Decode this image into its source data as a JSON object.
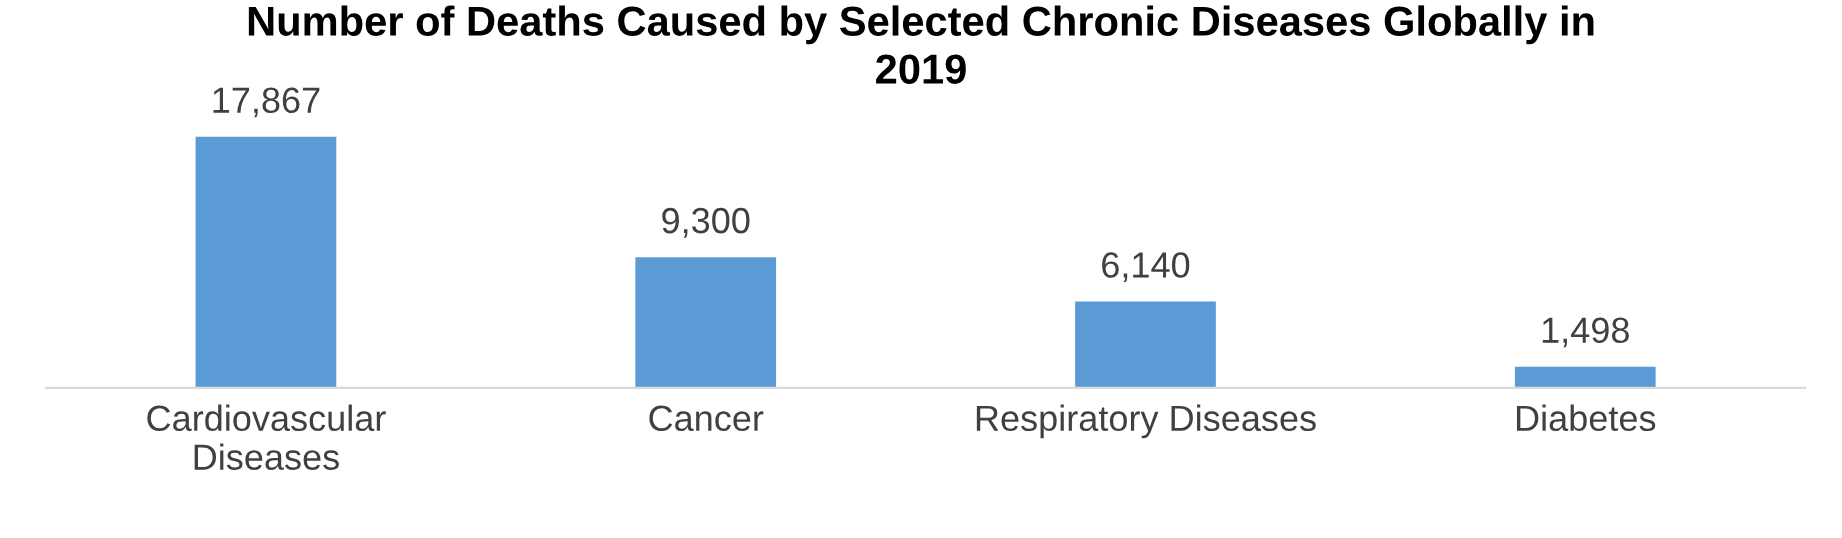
{
  "chart_data": {
    "type": "bar",
    "title": "Number of Deaths Caused by Selected Chronic Diseases Globally in\n2019",
    "categories": [
      "Cardiovascular\nDiseases",
      "Cancer",
      "Respiratory Diseases",
      "Diabetes"
    ],
    "values": [
      17867,
      9300,
      6140,
      1498
    ],
    "value_labels": [
      "17,867",
      "9,300",
      "6,140",
      "1,498"
    ],
    "color": "#5b9bd5",
    "tick_labels": "x",
    "grid": false,
    "legend": false
  }
}
